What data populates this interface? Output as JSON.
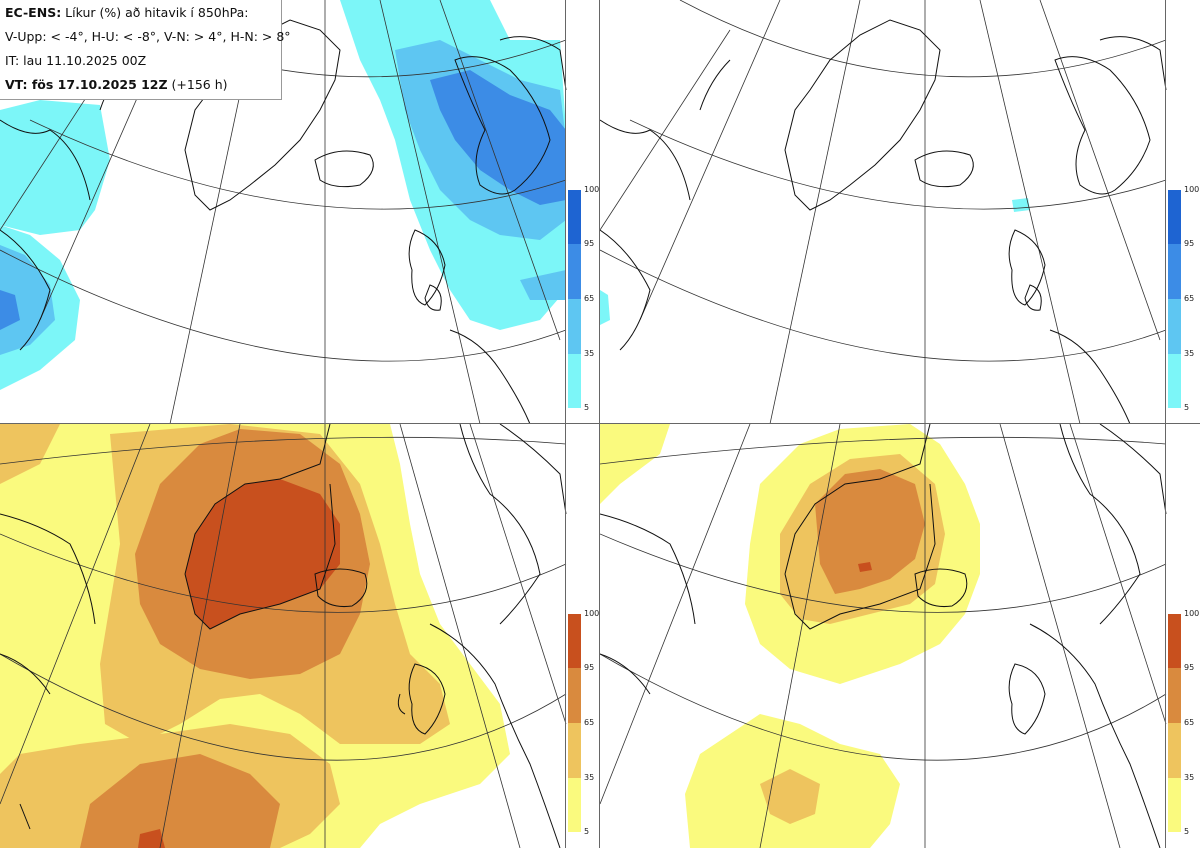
{
  "header": {
    "model_label": "EC-ENS:",
    "line1_rest": " Líkur (%) að hitavik í 850hPa:",
    "line2": "V-Upp: < -4°, H-U: < -8°, V-N: > 4°, H-N: > 8°",
    "line3": "IT: lau 11.10.2025 00Z",
    "vt_label": "VT: fös 17.10.2025 12Z",
    "vt_rest": " (+156 h)"
  },
  "colorbar": {
    "ticks": [
      "100",
      "95",
      "65",
      "35",
      "5"
    ],
    "cold_colors": [
      "#1e64d2",
      "#3c8ce6",
      "#5ec6f2",
      "#7cf6f8"
    ],
    "warm_colors": [
      "#c8501e",
      "#d98a3e",
      "#eec45e",
      "#fafa7e"
    ]
  },
  "panels": [
    {
      "id": "cold-anomaly-4",
      "scheme": "cold",
      "threshold": "< -4°"
    },
    {
      "id": "cold-anomaly-8",
      "scheme": "cold",
      "threshold": "< -8°"
    },
    {
      "id": "warm-anomaly-4",
      "scheme": "warm",
      "threshold": "> 4°"
    },
    {
      "id": "warm-anomaly-8",
      "scheme": "warm",
      "threshold": "> 8°"
    }
  ]
}
